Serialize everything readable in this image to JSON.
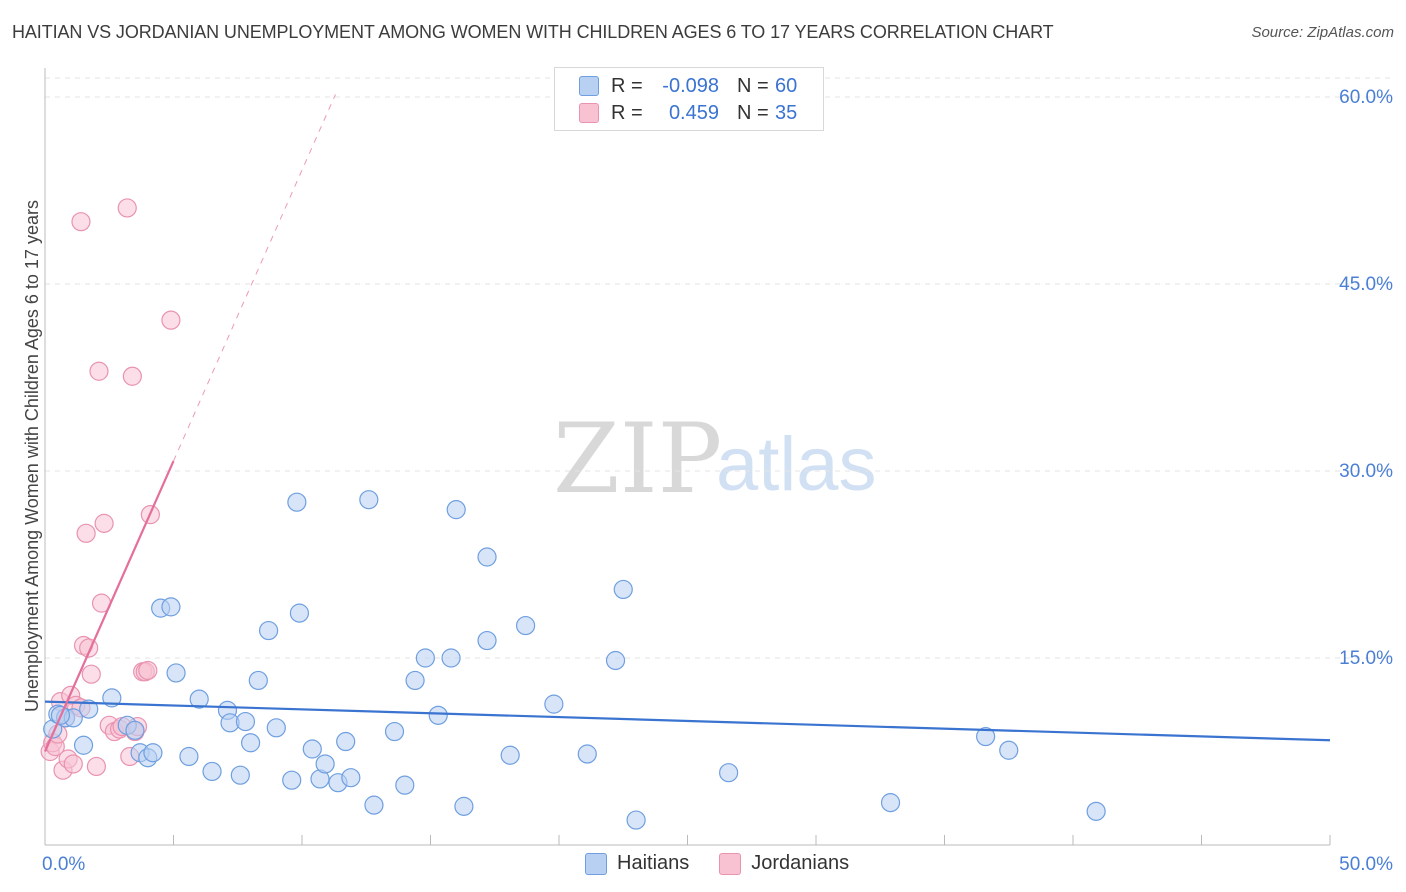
{
  "header": {
    "title": "HAITIAN VS JORDANIAN UNEMPLOYMENT AMONG WOMEN WITH CHILDREN AGES 6 TO 17 YEARS CORRELATION CHART",
    "source": "Source: ZipAtlas.com"
  },
  "watermark": {
    "zip": "ZIP",
    "atlas": "atlas"
  },
  "colors": {
    "haitians_fill": "#b8d0f2",
    "haitians_stroke": "#6f9fe0",
    "haitians_line": "#3a74d0",
    "jordanians_fill": "#f8c2d3",
    "jordanians_stroke": "#e993b0",
    "jordanians_line": "#e46f9a",
    "tick_text": "#4a7fd4"
  },
  "legend": {
    "rows": [
      {
        "r_label": "R =",
        "r_value": "-0.098",
        "n_label": "N =",
        "n_value": "60"
      },
      {
        "r_label": "R =",
        "r_value": "0.459",
        "n_label": "N =",
        "n_value": "35"
      }
    ],
    "bottom": [
      "Haitians",
      "Jordanians"
    ]
  },
  "chart_data": {
    "type": "scatter",
    "title": "HAITIAN VS JORDANIAN UNEMPLOYMENT AMONG WOMEN WITH CHILDREN AGES 6 TO 17 YEARS CORRELATION CHART",
    "xlabel": "",
    "ylabel": "Unemployment Among Women with Children Ages 6 to 17 years",
    "xlim": [
      0,
      50
    ],
    "ylim": [
      0,
      62
    ],
    "x_tick_labels": [
      "0.0%",
      "50.0%"
    ],
    "y_ticks": [
      15,
      30,
      45,
      60
    ],
    "y_tick_labels": [
      "15.0%",
      "30.0%",
      "45.0%",
      "60.0%"
    ],
    "grid": true,
    "legend_position": "top-center",
    "series": [
      {
        "name": "Haitians",
        "r": -0.098,
        "n": 60,
        "trend": {
          "x": [
            0,
            50
          ],
          "y": [
            11.5,
            8.4
          ]
        },
        "points": [
          [
            0.3,
            9.3
          ],
          [
            0.5,
            10.5
          ],
          [
            0.8,
            10.2
          ],
          [
            1.1,
            10.2
          ],
          [
            1.5,
            8.0
          ],
          [
            1.7,
            10.9
          ],
          [
            2.6,
            11.8
          ],
          [
            3.2,
            9.6
          ],
          [
            3.5,
            9.2
          ],
          [
            3.7,
            7.4
          ],
          [
            4.0,
            7.0
          ],
          [
            4.2,
            7.4
          ],
          [
            4.5,
            19.0
          ],
          [
            4.9,
            19.1
          ],
          [
            5.1,
            13.8
          ],
          [
            5.6,
            7.1
          ],
          [
            6.0,
            11.7
          ],
          [
            6.5,
            5.9
          ],
          [
            7.1,
            10.8
          ],
          [
            7.2,
            9.8
          ],
          [
            7.6,
            5.6
          ],
          [
            7.8,
            9.9
          ],
          [
            8.0,
            8.2
          ],
          [
            8.3,
            13.2
          ],
          [
            8.7,
            17.2
          ],
          [
            9.0,
            9.4
          ],
          [
            9.6,
            5.2
          ],
          [
            9.8,
            27.5
          ],
          [
            9.9,
            18.6
          ],
          [
            10.4,
            7.7
          ],
          [
            10.7,
            5.3
          ],
          [
            10.9,
            6.5
          ],
          [
            11.4,
            5.0
          ],
          [
            11.7,
            8.3
          ],
          [
            11.9,
            5.4
          ],
          [
            12.6,
            27.7
          ],
          [
            12.8,
            3.2
          ],
          [
            13.6,
            9.1
          ],
          [
            14.0,
            4.8
          ],
          [
            14.4,
            13.2
          ],
          [
            14.8,
            15.0
          ],
          [
            15.3,
            10.4
          ],
          [
            15.8,
            15.0
          ],
          [
            16.0,
            26.9
          ],
          [
            16.3,
            3.1
          ],
          [
            17.2,
            16.4
          ],
          [
            17.2,
            23.1
          ],
          [
            18.1,
            7.2
          ],
          [
            18.7,
            17.6
          ],
          [
            19.8,
            11.3
          ],
          [
            21.1,
            7.3
          ],
          [
            22.2,
            14.8
          ],
          [
            22.5,
            20.5
          ],
          [
            23.0,
            2.0
          ],
          [
            26.6,
            5.8
          ],
          [
            32.9,
            3.4
          ],
          [
            36.6,
            8.7
          ],
          [
            37.5,
            7.6
          ],
          [
            40.9,
            2.7
          ],
          [
            0.6,
            10.4
          ]
        ]
      },
      {
        "name": "Jordanians",
        "r": 0.459,
        "n": 35,
        "trend": {
          "x": [
            0,
            5
          ],
          "y": [
            7.5,
            30.8
          ]
        },
        "trend_dashed": {
          "x": [
            5,
            11.3
          ],
          "y": [
            30.8,
            60.2
          ]
        },
        "points": [
          [
            0.2,
            7.5
          ],
          [
            0.3,
            8.2
          ],
          [
            0.4,
            7.9
          ],
          [
            0.5,
            8.9
          ],
          [
            0.6,
            11.5
          ],
          [
            0.7,
            6.0
          ],
          [
            0.8,
            10.2
          ],
          [
            0.9,
            6.9
          ],
          [
            1.0,
            12.0
          ],
          [
            1.1,
            6.5
          ],
          [
            1.2,
            11.2
          ],
          [
            1.4,
            11.0
          ],
          [
            1.4,
            50.0
          ],
          [
            1.5,
            16.0
          ],
          [
            1.6,
            25.0
          ],
          [
            1.7,
            15.8
          ],
          [
            1.8,
            13.7
          ],
          [
            2.0,
            6.3
          ],
          [
            2.1,
            38.0
          ],
          [
            2.2,
            19.4
          ],
          [
            2.3,
            25.8
          ],
          [
            2.5,
            9.6
          ],
          [
            2.7,
            9.1
          ],
          [
            2.9,
            9.3
          ],
          [
            3.0,
            9.5
          ],
          [
            3.2,
            51.1
          ],
          [
            3.3,
            7.1
          ],
          [
            3.4,
            37.6
          ],
          [
            3.5,
            9.1
          ],
          [
            3.6,
            9.5
          ],
          [
            3.8,
            13.9
          ],
          [
            3.9,
            13.9
          ],
          [
            4.0,
            14.0
          ],
          [
            4.9,
            42.1
          ],
          [
            4.1,
            26.5
          ]
        ]
      }
    ]
  }
}
